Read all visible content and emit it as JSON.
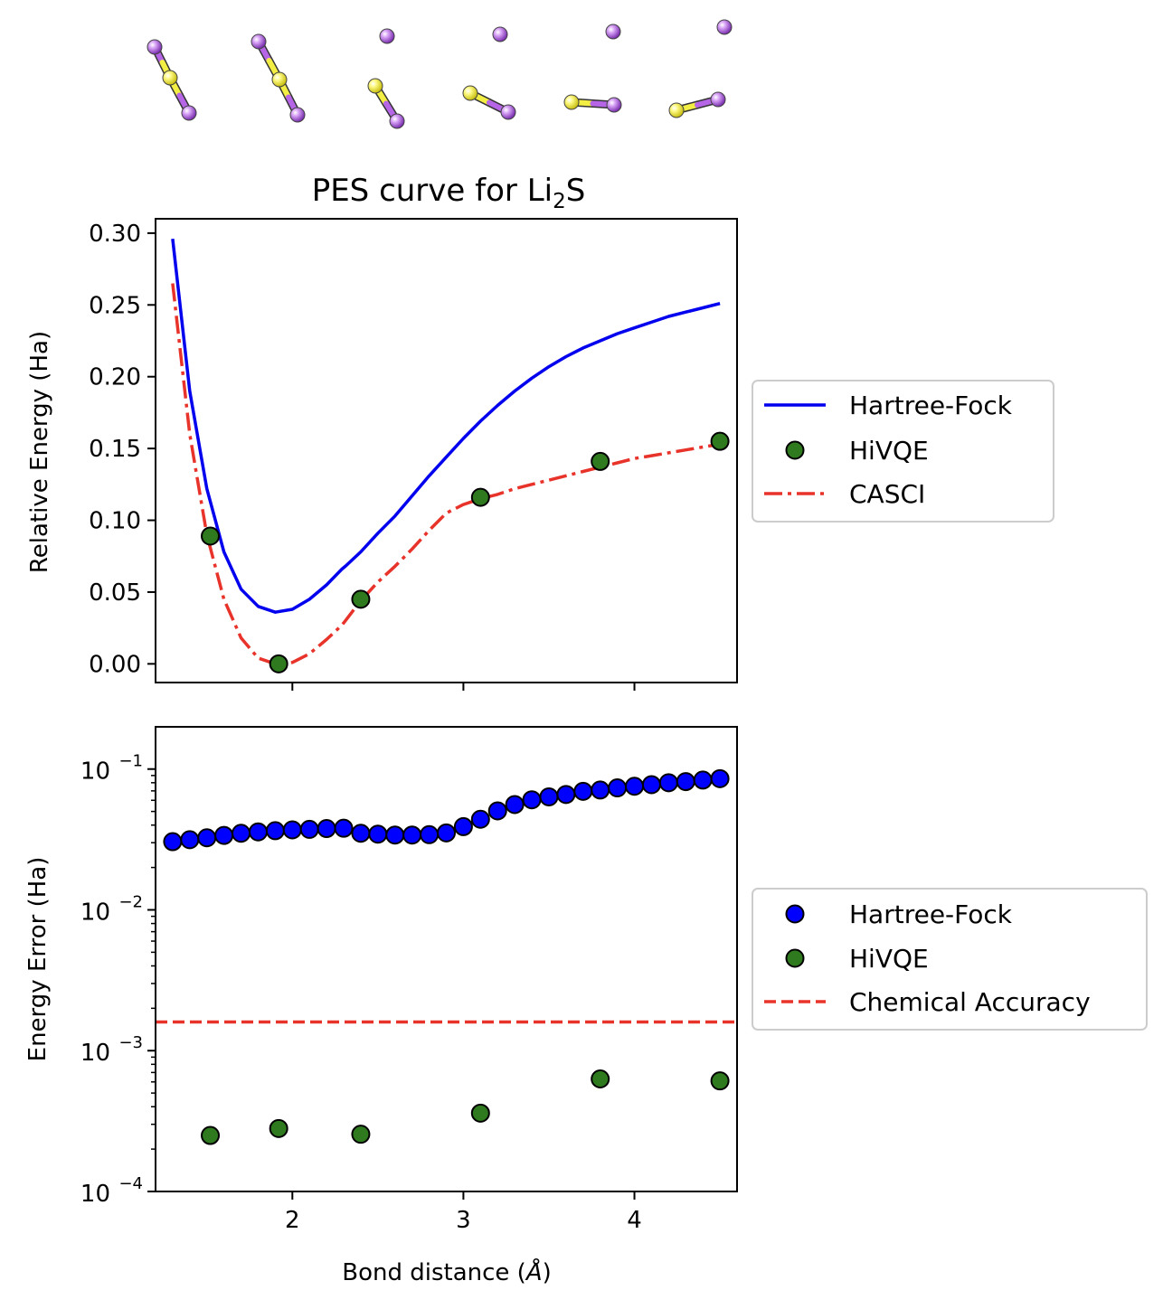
{
  "molecules_strip": {
    "description_colors": {
      "lithium": "#b565e6",
      "sulfur": "#f2ee44"
    }
  },
  "chart_data": [
    {
      "type": "line",
      "title_main": "PES curve for Li",
      "title_sub": "2",
      "title_tail": "S",
      "xlabel": "",
      "ylabel": "Relative Energy (Ha)",
      "xlim": [
        1.2,
        4.6
      ],
      "ylim": [
        -0.013,
        0.31
      ],
      "yticks": [
        0.0,
        0.05,
        0.1,
        0.15,
        0.2,
        0.25,
        0.3
      ],
      "ytick_labels": [
        "0.00",
        "0.05",
        "0.10",
        "0.15",
        "0.20",
        "0.25",
        "0.30"
      ],
      "xticks": [
        2,
        3,
        4
      ],
      "legend": {
        "position": "right",
        "entries": [
          "Hartree-Fock",
          "HiVQE",
          "CASCI"
        ]
      },
      "series": [
        {
          "name": "Hartree-Fock",
          "style": "solid",
          "color": "#0000ee",
          "x": [
            1.3,
            1.4,
            1.5,
            1.6,
            1.7,
            1.8,
            1.9,
            2.0,
            2.1,
            2.2,
            2.29,
            2.31,
            2.4,
            2.5,
            2.6,
            2.7,
            2.8,
            2.9,
            3.0,
            3.1,
            3.2,
            3.3,
            3.4,
            3.5,
            3.6,
            3.7,
            3.8,
            3.9,
            4.0,
            4.1,
            4.2,
            4.3,
            4.4,
            4.5
          ],
          "y": [
            0.296,
            0.19,
            0.122,
            0.078,
            0.052,
            0.04,
            0.036,
            0.038,
            0.045,
            0.055,
            0.066,
            0.068,
            0.078,
            0.091,
            0.103,
            0.117,
            0.131,
            0.144,
            0.157,
            0.169,
            0.18,
            0.19,
            0.199,
            0.207,
            0.214,
            0.22,
            0.225,
            0.23,
            0.234,
            0.238,
            0.242,
            0.245,
            0.248,
            0.251
          ]
        },
        {
          "name": "CASCI",
          "style": "dashdot",
          "color": "#e8332a",
          "x": [
            1.3,
            1.4,
            1.5,
            1.6,
            1.7,
            1.8,
            1.9,
            2.0,
            2.1,
            2.2,
            2.29,
            2.31,
            2.4,
            2.5,
            2.6,
            2.7,
            2.8,
            2.9,
            3.0,
            3.1,
            3.2,
            3.3,
            3.4,
            3.5,
            3.6,
            3.7,
            3.8,
            3.9,
            4.0,
            4.1,
            4.2,
            4.3,
            4.4,
            4.5
          ],
          "y": [
            0.265,
            0.16,
            0.09,
            0.045,
            0.018,
            0.004,
            0.0,
            0.001,
            0.007,
            0.017,
            0.027,
            0.03,
            0.044,
            0.057,
            0.068,
            0.08,
            0.093,
            0.105,
            0.111,
            0.115,
            0.118,
            0.122,
            0.125,
            0.128,
            0.131,
            0.134,
            0.137,
            0.14,
            0.143,
            0.145,
            0.147,
            0.149,
            0.151,
            0.153
          ]
        },
        {
          "name": "HiVQE",
          "style": "markers",
          "color": "#2f7a1f",
          "x": [
            1.52,
            1.92,
            2.4,
            3.1,
            3.8,
            4.5
          ],
          "y": [
            0.089,
            0.0,
            0.045,
            0.116,
            0.141,
            0.155
          ]
        }
      ]
    },
    {
      "type": "scatter",
      "xlabel": "Bond distance (",
      "xlabel_unit": "Å",
      "xlabel_tail": ")",
      "ylabel": "Energy Error (Ha)",
      "yscale": "log",
      "xlim": [
        1.2,
        4.6
      ],
      "ylim_exp": [
        -4,
        -0.7
      ],
      "xticks": [
        2,
        3,
        4
      ],
      "xtick_labels": [
        "2",
        "3",
        "4"
      ],
      "yticks_exp": [
        -4,
        -3,
        -2,
        -1
      ],
      "ytick_base": "10",
      "ytick_exps": [
        "−4",
        "−3",
        "−2",
        "−1"
      ],
      "legend": {
        "position": "right",
        "entries": [
          "Hartree-Fock",
          "HiVQE",
          "Chemical Accuracy"
        ]
      },
      "series": [
        {
          "name": "Hartree-Fock",
          "style": "markers",
          "color": "#0000ff",
          "x": [
            1.3,
            1.4,
            1.5,
            1.6,
            1.7,
            1.8,
            1.9,
            2.0,
            2.1,
            2.2,
            2.3,
            2.4,
            2.5,
            2.6,
            2.7,
            2.8,
            2.9,
            3.0,
            3.1,
            3.2,
            3.3,
            3.4,
            3.5,
            3.6,
            3.7,
            3.8,
            3.9,
            4.0,
            4.1,
            4.2,
            4.3,
            4.4,
            4.5
          ],
          "y": [
            0.0305,
            0.0315,
            0.0325,
            0.0338,
            0.035,
            0.0358,
            0.0365,
            0.037,
            0.0373,
            0.0378,
            0.038,
            0.035,
            0.0345,
            0.034,
            0.034,
            0.0342,
            0.0352,
            0.039,
            0.044,
            0.0505,
            0.056,
            0.0605,
            0.0635,
            0.066,
            0.0695,
            0.071,
            0.0735,
            0.0755,
            0.0775,
            0.08,
            0.0815,
            0.0835,
            0.0855
          ]
        },
        {
          "name": "HiVQE",
          "style": "markers",
          "color": "#2f7a1f",
          "x": [
            1.52,
            1.92,
            2.4,
            3.1,
            3.8,
            4.5
          ],
          "y": [
            0.00025,
            0.00028,
            0.000255,
            0.00036,
            0.00063,
            0.00061
          ]
        },
        {
          "name": "Chemical Accuracy",
          "style": "dashed",
          "color": "#e8332a",
          "y": 0.0016
        }
      ]
    }
  ]
}
